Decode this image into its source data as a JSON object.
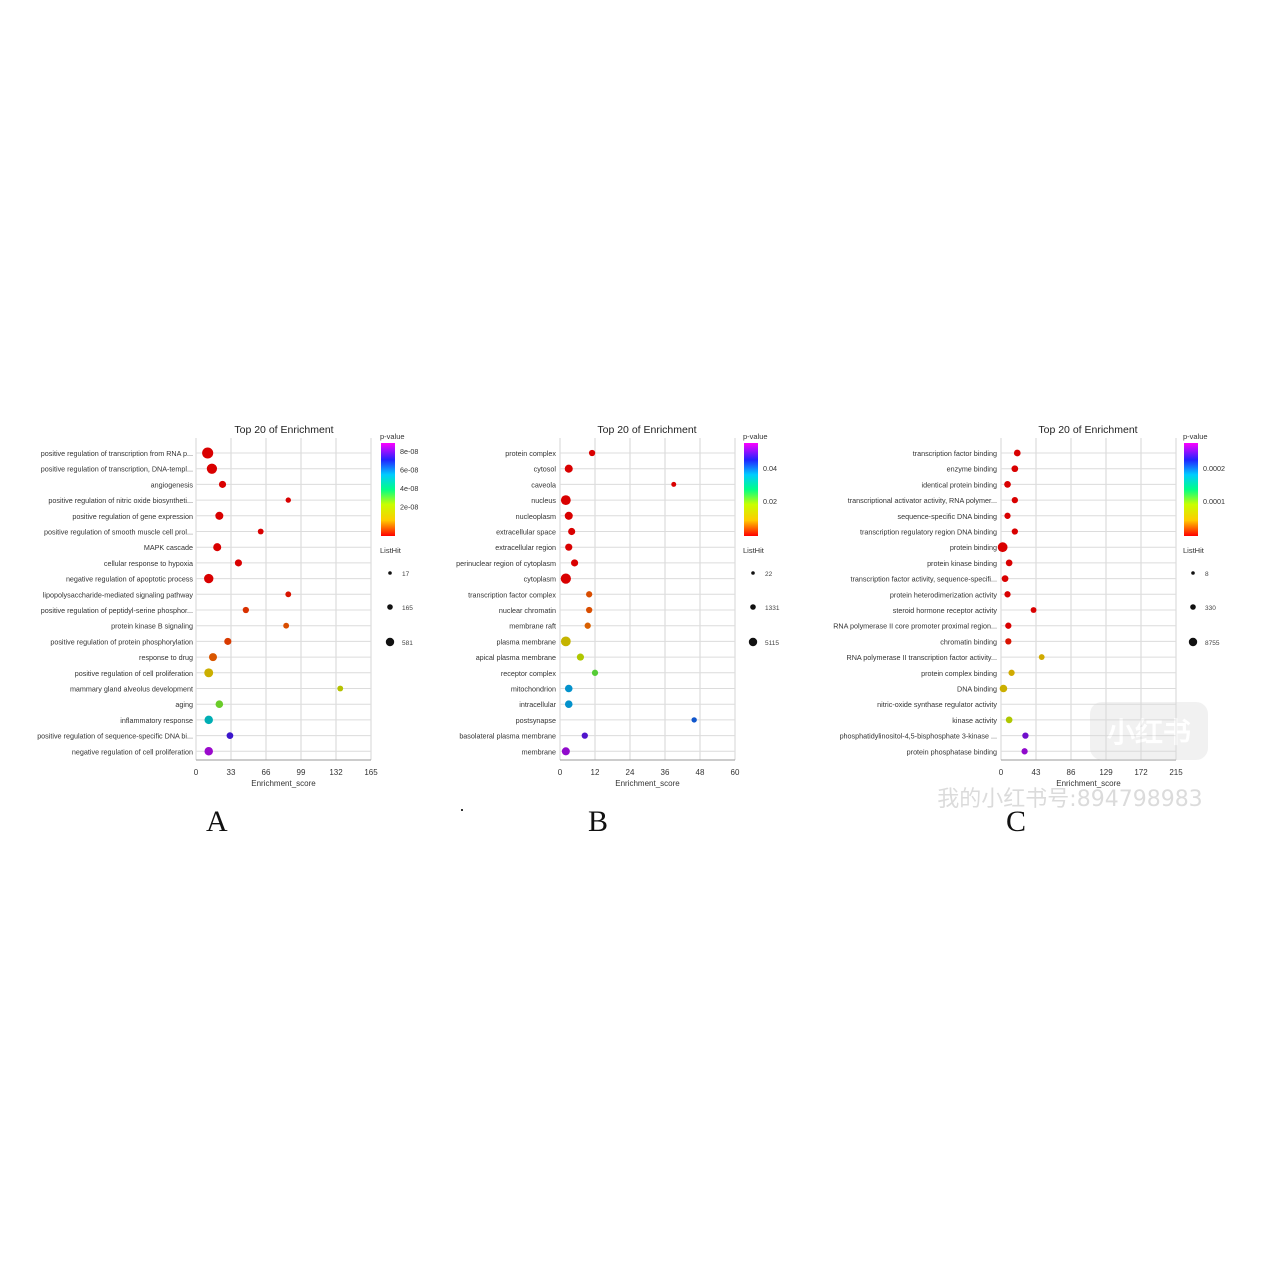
{
  "panel_letters": [
    "A",
    "B",
    "C"
  ],
  "watermark": {
    "logo_text": "小红书",
    "id_text": "我的小红书号:894798983"
  },
  "chart_data": [
    {
      "type": "scatter",
      "title": "Top 20 of  Enrichment",
      "xlabel": "Enrichment_score",
      "xticks": [
        0,
        33,
        66,
        99,
        132,
        165
      ],
      "xlim": [
        0,
        165
      ],
      "grid": true,
      "colorbar": {
        "title": "p-value",
        "ticks": [
          "8e-08",
          "6e-08",
          "4e-08",
          "2e-08"
        ],
        "range": [
          0,
          9e-08
        ]
      },
      "size_legend": {
        "title": "ListHit",
        "values": [
          "17",
          "165",
          "581"
        ]
      },
      "terms": [
        "positive regulation of transcription from RNA p...",
        "positive regulation of transcription, DNA-templ...",
        "angiogenesis",
        "positive regulation of nitric oxide biosyntheti...",
        "positive regulation of gene expression",
        "positive regulation of smooth muscle cell prol...",
        "MAPK cascade",
        "cellular response to hypoxia",
        "negative regulation of apoptotic process",
        "lipopolysaccharide-mediated signaling pathway",
        "positive regulation of peptidyl-serine phosphor...",
        "protein kinase B signaling",
        "positive regulation of protein phosphorylation",
        "response to drug",
        "positive regulation of cell proliferation",
        "mammary gland alveolus development",
        "aging",
        "inflammatory response",
        "positive regulation of sequence-specific DNA bi...",
        "negative regulation of cell proliferation"
      ],
      "enrichment": [
        11,
        15,
        25,
        87,
        22,
        61,
        20,
        40,
        12,
        87,
        47,
        85,
        30,
        16,
        12,
        136,
        22,
        12,
        32,
        12
      ],
      "color_frac": [
        0.0,
        0.0,
        0.0,
        0.0,
        0.0,
        0.0,
        0.0,
        0.0,
        0.0,
        0.02,
        0.05,
        0.08,
        0.06,
        0.09,
        0.22,
        0.3,
        0.4,
        0.62,
        0.85,
        0.94
      ],
      "size_frac": [
        0.9,
        0.8,
        0.45,
        0.25,
        0.55,
        0.3,
        0.55,
        0.45,
        0.7,
        0.3,
        0.35,
        0.3,
        0.45,
        0.55,
        0.65,
        0.3,
        0.5,
        0.6,
        0.4,
        0.6
      ]
    },
    {
      "type": "scatter",
      "title": "Top 20 of  Enrichment",
      "xlabel": "Enrichment_score",
      "xticks": [
        0,
        12,
        24,
        36,
        48,
        60
      ],
      "xlim": [
        0,
        60
      ],
      "grid": true,
      "colorbar": {
        "title": "p-value",
        "ticks": [
          "0.04",
          "0.02"
        ],
        "range": [
          0,
          0.05
        ]
      },
      "size_legend": {
        "title": "ListHit",
        "values": [
          "22",
          "1331",
          "5115"
        ]
      },
      "terms": [
        "protein complex",
        "cytosol",
        "caveola",
        "nucleus",
        "nucleoplasm",
        "extracellular space",
        "extracellular region",
        "perinuclear region of cytoplasm",
        "cytoplasm",
        "transcription factor complex",
        "nuclear chromatin",
        "membrane raft",
        "plasma membrane",
        "apical plasma membrane",
        "receptor complex",
        "mitochondrion",
        "intracellular",
        "postsynapse",
        "basolateral plasma membrane",
        "membrane"
      ],
      "enrichment": [
        11,
        3,
        39,
        2,
        3,
        4,
        3,
        5,
        2,
        10,
        10,
        9.5,
        2,
        7,
        12,
        3,
        3,
        46,
        8.5,
        2
      ],
      "color_frac": [
        0.0,
        0.0,
        0.0,
        0.0,
        0.0,
        0.0,
        0.0,
        0.0,
        0.0,
        0.08,
        0.08,
        0.1,
        0.24,
        0.32,
        0.42,
        0.68,
        0.68,
        0.75,
        0.87,
        0.93
      ],
      "size_frac": [
        0.35,
        0.55,
        0.2,
        0.75,
        0.55,
        0.45,
        0.45,
        0.45,
        0.8,
        0.35,
        0.35,
        0.35,
        0.75,
        0.45,
        0.35,
        0.5,
        0.5,
        0.25,
        0.35,
        0.55
      ]
    },
    {
      "type": "scatter",
      "title": "Top 20 of  Enrichment",
      "xlabel": "Enrichment_score",
      "xticks": [
        0,
        43,
        86,
        129,
        172,
        215
      ],
      "xlim": [
        0,
        215
      ],
      "grid": true,
      "colorbar": {
        "title": "p-value",
        "ticks": [
          "0.0002",
          "0.0001"
        ],
        "range": [
          0,
          0.00025
        ]
      },
      "size_legend": {
        "title": "ListHit",
        "values": [
          "8",
          "330",
          "8755"
        ]
      },
      "terms": [
        "transcription factor binding",
        "enzyme binding",
        "identical protein binding",
        "transcriptional activator activity, RNA polymer...",
        "sequence-specific DNA binding",
        "transcription regulatory region DNA binding",
        "protein binding",
        "protein kinase binding",
        "transcription factor activity, sequence-specifi...",
        "protein heterodimerization activity",
        "steroid hormone receptor activity",
        "RNA polymerase II core promoter proximal region...",
        "chromatin binding",
        "RNA polymerase II transcription factor activity...",
        "protein complex binding",
        "DNA binding",
        "nitric-oxide synthase regulator activity",
        "kinase activity",
        "phosphatidylinositol-4,5-bisphosphate 3-kinase ...",
        "protein phosphatase binding"
      ],
      "enrichment": [
        20,
        17,
        8,
        17,
        8,
        17,
        2,
        10,
        5,
        8,
        40,
        9,
        9,
        50,
        13,
        3,
        null,
        10,
        30,
        29
      ],
      "color_frac": [
        0.0,
        0.0,
        0.0,
        0.0,
        0.0,
        0.0,
        0.0,
        0.0,
        0.0,
        0.0,
        0.0,
        0.0,
        0.02,
        0.2,
        0.2,
        0.22,
        null,
        0.32,
        0.9,
        0.93
      ],
      "size_frac": [
        0.4,
        0.4,
        0.4,
        0.35,
        0.35,
        0.35,
        0.75,
        0.4,
        0.4,
        0.35,
        0.3,
        0.35,
        0.35,
        0.3,
        0.35,
        0.5,
        null,
        0.4,
        0.35,
        0.35
      ]
    }
  ]
}
